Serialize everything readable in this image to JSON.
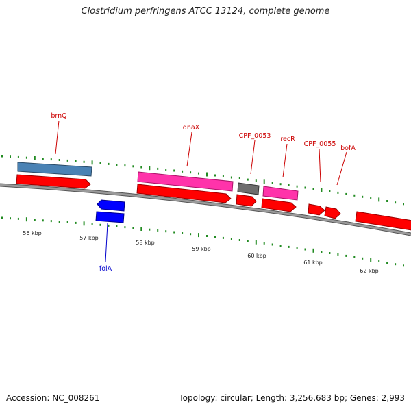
{
  "title": "Clostridium perfringens ATCC 13124, complete genome",
  "accession": "Accession: NC_008261",
  "summary": "Topology: circular; Length: 3,256,683 bp; Genes: 2,993",
  "colors": {
    "backbone": "#808080",
    "tick": "#228b22",
    "label_red": "#cc0000",
    "label_blue": "#0000cc",
    "cds": "#ff0000",
    "gene_blue": "#4a82b4",
    "gene_pink": "#ff33aa",
    "gene_grey": "#6e6e6e",
    "fola": "#0000ff"
  },
  "kbp_labels": [
    "56 kbp",
    "57 kbp",
    "58 kbp",
    "59 kbp",
    "60 kbp",
    "61 kbp",
    "62 kbp"
  ],
  "gene_labels": [
    "brnQ",
    "dnaX",
    "CPF_0053",
    "recR",
    "CPF_0055",
    "bofA",
    "folA"
  ]
}
